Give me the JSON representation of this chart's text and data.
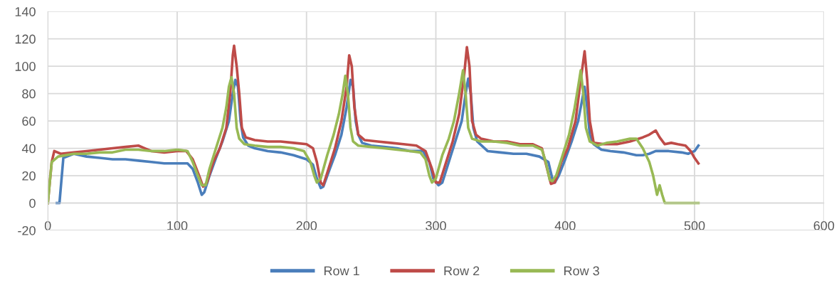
{
  "chart_data": {
    "type": "line",
    "xlim": [
      0,
      600
    ],
    "ylim": [
      -20,
      140
    ],
    "xticks": [
      0,
      100,
      200,
      300,
      400,
      500,
      600
    ],
    "yticks": [
      -20,
      0,
      20,
      40,
      60,
      80,
      100,
      120,
      140
    ],
    "grid": true,
    "legend": "bottom",
    "marker": "none",
    "line_style": "solid",
    "series": [
      {
        "name": "Row 1",
        "color": "#4a7ebb",
        "x": [
          7,
          9,
          12,
          20,
          30,
          40,
          50,
          60,
          70,
          80,
          90,
          100,
          108,
          112,
          116,
          119,
          121,
          125,
          130,
          135,
          140,
          143,
          145,
          147,
          149,
          151,
          155,
          160,
          170,
          180,
          190,
          200,
          205,
          208,
          211,
          213,
          218,
          222,
          227,
          231,
          234,
          236,
          238,
          240,
          243,
          250,
          260,
          270,
          280,
          290,
          295,
          298,
          302,
          305,
          310,
          315,
          320,
          323,
          325,
          327,
          329,
          332,
          340,
          350,
          360,
          370,
          380,
          387,
          390,
          392,
          395,
          400,
          405,
          410,
          413,
          415,
          417,
          419,
          422,
          428,
          435,
          445,
          455,
          460,
          465,
          470,
          480,
          490,
          495,
          500,
          503
        ],
        "values": [
          0,
          0,
          33,
          36,
          34,
          33,
          32,
          32,
          31,
          30,
          29,
          29,
          29,
          25,
          15,
          6,
          8,
          20,
          33,
          45,
          60,
          80,
          90,
          85,
          60,
          48,
          42,
          40,
          38,
          37,
          35,
          32,
          28,
          18,
          11,
          12,
          25,
          35,
          50,
          70,
          90,
          85,
          60,
          50,
          44,
          42,
          41,
          40,
          38,
          38,
          30,
          18,
          13,
          15,
          30,
          45,
          60,
          80,
          91,
          80,
          55,
          45,
          38,
          37,
          36,
          36,
          34,
          30,
          18,
          15,
          20,
          32,
          45,
          60,
          75,
          85,
          70,
          50,
          43,
          39,
          38,
          37,
          35,
          35,
          36,
          38,
          38,
          37,
          36,
          38,
          42
        ]
      },
      {
        "name": "Row 2",
        "color": "#be4b48",
        "x": [
          0,
          3,
          5,
          10,
          20,
          30,
          40,
          50,
          60,
          70,
          75,
          80,
          90,
          100,
          107,
          112,
          117,
          120,
          123,
          128,
          133,
          138,
          141,
          143,
          144,
          146,
          148,
          150,
          153,
          160,
          170,
          180,
          190,
          200,
          205,
          208,
          211,
          213,
          217,
          222,
          227,
          231,
          233,
          235,
          237,
          240,
          245,
          255,
          265,
          275,
          285,
          292,
          297,
          300,
          303,
          308,
          313,
          318,
          322,
          324,
          326,
          328,
          331,
          335,
          345,
          355,
          365,
          375,
          382,
          386,
          389,
          392,
          397,
          402,
          408,
          412,
          415,
          417,
          419,
          422,
          430,
          440,
          450,
          460,
          465,
          470,
          473,
          477,
          482,
          487,
          493,
          497,
          500,
          503
        ],
        "values": [
          0,
          30,
          38,
          36,
          37,
          38,
          39,
          40,
          41,
          42,
          40,
          38,
          37,
          38,
          38,
          32,
          20,
          12,
          15,
          30,
          40,
          55,
          80,
          108,
          115,
          100,
          80,
          55,
          48,
          46,
          45,
          45,
          44,
          43,
          40,
          30,
          15,
          13,
          25,
          40,
          60,
          85,
          108,
          100,
          70,
          50,
          46,
          45,
          44,
          43,
          42,
          38,
          25,
          15,
          15,
          30,
          45,
          65,
          95,
          114,
          100,
          60,
          50,
          47,
          45,
          45,
          43,
          43,
          40,
          25,
          14,
          15,
          30,
          40,
          60,
          90,
          111,
          90,
          60,
          44,
          43,
          43,
          45,
          48,
          50,
          53,
          48,
          43,
          44,
          43,
          42,
          38,
          33,
          29
        ]
      },
      {
        "name": "Row 3",
        "color": "#98b954",
        "x": [
          0,
          3,
          8,
          20,
          30,
          40,
          50,
          60,
          70,
          80,
          90,
          100,
          108,
          112,
          116,
          119,
          122,
          125,
          130,
          135,
          138,
          140,
          142,
          144,
          146,
          148,
          152,
          160,
          170,
          180,
          190,
          198,
          203,
          206,
          208,
          211,
          216,
          221,
          225,
          228,
          230,
          232,
          234,
          236,
          240,
          250,
          260,
          270,
          280,
          288,
          292,
          295,
          297,
          300,
          305,
          310,
          314,
          318,
          321,
          323,
          325,
          328,
          335,
          345,
          355,
          365,
          375,
          382,
          385,
          388,
          390,
          393,
          398,
          403,
          407,
          410,
          412,
          414,
          416,
          419,
          425,
          432,
          440,
          450,
          455,
          460,
          465,
          468,
          471,
          473,
          475,
          477,
          490,
          503
        ],
        "values": [
          0,
          30,
          34,
          36,
          36,
          37,
          37,
          39,
          39,
          38,
          38,
          39,
          38,
          30,
          20,
          13,
          13,
          25,
          40,
          55,
          70,
          85,
          92,
          80,
          55,
          47,
          43,
          42,
          41,
          41,
          40,
          38,
          30,
          20,
          15,
          18,
          35,
          50,
          65,
          80,
          93,
          80,
          55,
          45,
          42,
          41,
          40,
          39,
          38,
          37,
          32,
          20,
          15,
          18,
          35,
          47,
          60,
          80,
          97,
          80,
          55,
          47,
          45,
          45,
          44,
          42,
          42,
          39,
          30,
          17,
          16,
          20,
          35,
          50,
          68,
          85,
          97,
          80,
          55,
          45,
          42,
          44,
          45,
          47,
          47,
          40,
          30,
          20,
          6,
          13,
          6,
          0,
          0,
          0
        ]
      }
    ]
  }
}
